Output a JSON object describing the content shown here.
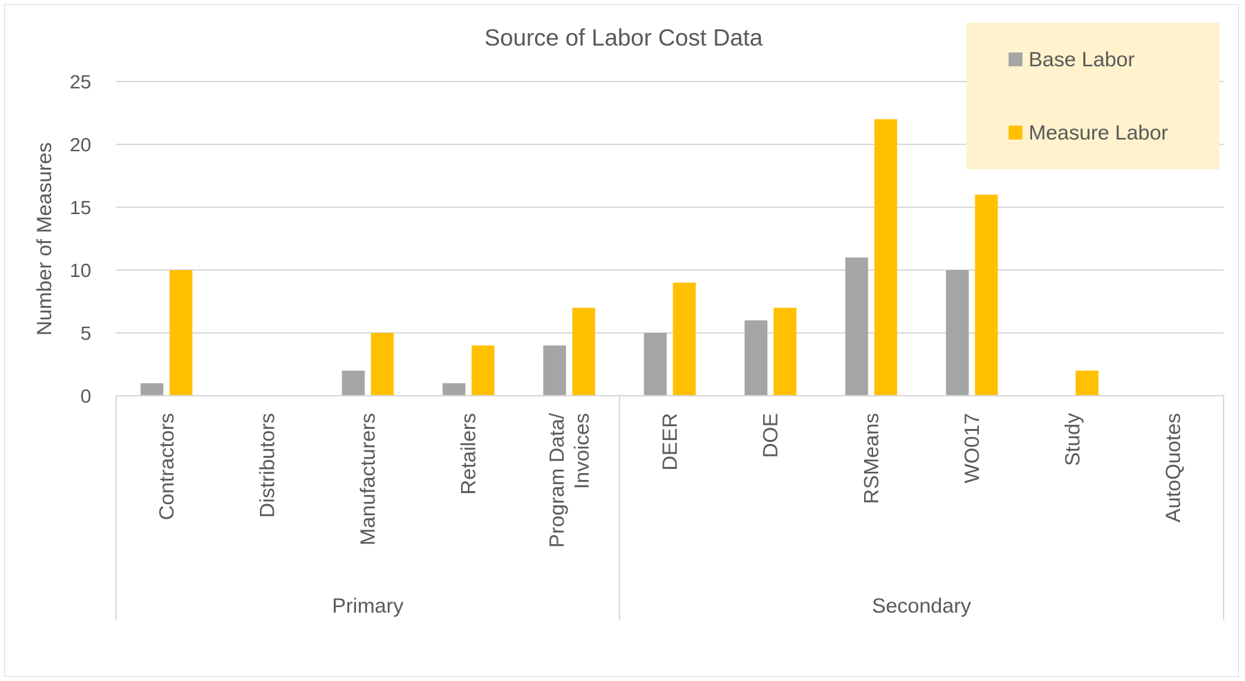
{
  "chart_data": {
    "type": "bar",
    "title": "Source of Labor Cost Data",
    "ylabel": "Number of Measures",
    "xlabel": "",
    "ylim": [
      0,
      25
    ],
    "yticks": [
      0,
      5,
      10,
      15,
      20,
      25
    ],
    "grid": true,
    "legend_position": "top-right",
    "groups": [
      {
        "label": "Primary",
        "categories": [
          "Contractors",
          "Distributors",
          "Manufacturers",
          "Retailers",
          "Program Data/ Invoices"
        ]
      },
      {
        "label": "Secondary",
        "categories": [
          "DEER",
          "DOE",
          "RSMeans",
          "WO017",
          "Study",
          "AutoQuotes"
        ]
      }
    ],
    "categories": [
      "Contractors",
      "Distributors",
      "Manufacturers",
      "Retailers",
      "Program Data/ Invoices",
      "DEER",
      "DOE",
      "RSMeans",
      "WO017",
      "Study",
      "AutoQuotes"
    ],
    "series": [
      {
        "name": "Base Labor",
        "color": "#a5a5a5",
        "values": [
          1,
          0,
          2,
          1,
          4,
          5,
          6,
          11,
          10,
          0,
          0
        ]
      },
      {
        "name": "Measure Labor",
        "color": "#ffc000",
        "values": [
          10,
          0,
          5,
          4,
          7,
          9,
          7,
          22,
          16,
          2,
          0
        ]
      }
    ],
    "legend_background": "#fff2cc"
  }
}
